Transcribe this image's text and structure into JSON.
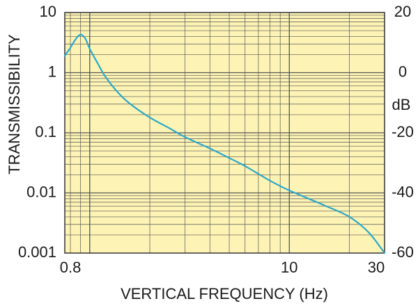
{
  "chart_data": {
    "type": "line",
    "title": "",
    "xlabel": "VERTICAL FREQUENCY (Hz)",
    "ylabel": "TRANSMISSIBILITY",
    "y2label": "dB",
    "xscale": "log",
    "yscale": "log",
    "xlim": [
      0.75,
      30
    ],
    "ylim": [
      0.001,
      10
    ],
    "xticks": [
      {
        "value": 0.8,
        "label": "0.8"
      },
      {
        "value": 10,
        "label": "10"
      },
      {
        "value": 30,
        "label": "30"
      }
    ],
    "yticks": [
      {
        "value": 10,
        "label": "10"
      },
      {
        "value": 1,
        "label": "1"
      },
      {
        "value": 0.1,
        "label": "0.1"
      },
      {
        "value": 0.01,
        "label": "0.01"
      },
      {
        "value": 0.001,
        "label": "0.001"
      }
    ],
    "y2ticks": [
      {
        "value": 20,
        "label": "20"
      },
      {
        "value": 0,
        "label": "0"
      },
      {
        "value": -20,
        "label": "-20"
      },
      {
        "value": -40,
        "label": "-40"
      },
      {
        "value": -60,
        "label": "-60"
      }
    ],
    "grid": true,
    "colors": {
      "plot_background": "#fdf3b5",
      "grid_line": "#555555",
      "series_line": "#2ba8c9",
      "text": "#1a1a1a"
    },
    "series": [
      {
        "x": [
          0.75,
          0.8,
          0.85,
          0.9,
          0.95,
          1.0,
          1.1,
          1.2,
          1.4,
          1.6,
          2.0,
          2.5,
          3,
          4,
          5,
          6,
          8,
          10,
          15,
          20,
          25,
          30
        ],
        "y": [
          1.9,
          2.6,
          3.6,
          4.3,
          3.7,
          2.5,
          1.4,
          0.85,
          0.45,
          0.3,
          0.18,
          0.12,
          0.085,
          0.055,
          0.038,
          0.028,
          0.016,
          0.011,
          0.0062,
          0.004,
          0.0022,
          0.001
        ]
      }
    ]
  }
}
